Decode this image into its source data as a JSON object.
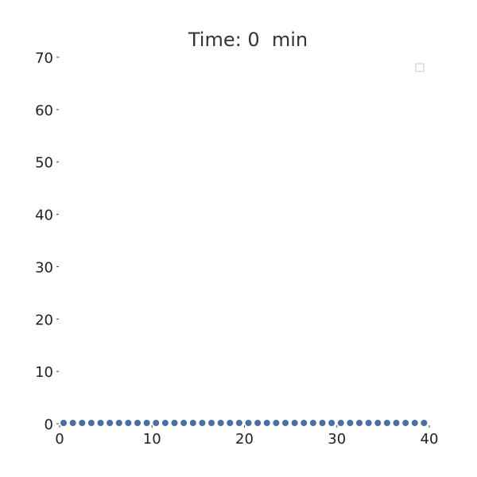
{
  "chart_data": {
    "type": "scatter",
    "title": "Time: 0  min",
    "xlabel": "",
    "ylabel": "",
    "xlim": [
      0,
      40
    ],
    "ylim": [
      0,
      70
    ],
    "xticks": [
      "0",
      "10",
      "20",
      "30",
      "40"
    ],
    "yticks": [
      "0",
      "10",
      "20",
      "30",
      "40",
      "50",
      "60",
      "70"
    ],
    "grid": false,
    "legend": {
      "placement": "top-right",
      "entries": []
    },
    "marker_color": "#4a6fa5",
    "series": [
      {
        "x": [
          0,
          1,
          2,
          3,
          4,
          5,
          6,
          7,
          8,
          9,
          10,
          11,
          12,
          13,
          14,
          15,
          16,
          17,
          18,
          19,
          20,
          21,
          22,
          23,
          24,
          25,
          26,
          27,
          28,
          29,
          30,
          31,
          32,
          33,
          34,
          35,
          36,
          37,
          38,
          39
        ],
        "y": [
          0,
          0,
          0,
          0,
          0,
          0,
          0,
          0,
          0,
          0,
          0,
          0,
          0,
          0,
          0,
          0,
          0,
          0,
          0,
          0,
          0,
          0,
          0,
          0,
          0,
          0,
          0,
          0,
          0,
          0,
          0,
          0,
          0,
          0,
          0,
          0,
          0,
          0,
          0,
          0
        ]
      }
    ]
  }
}
